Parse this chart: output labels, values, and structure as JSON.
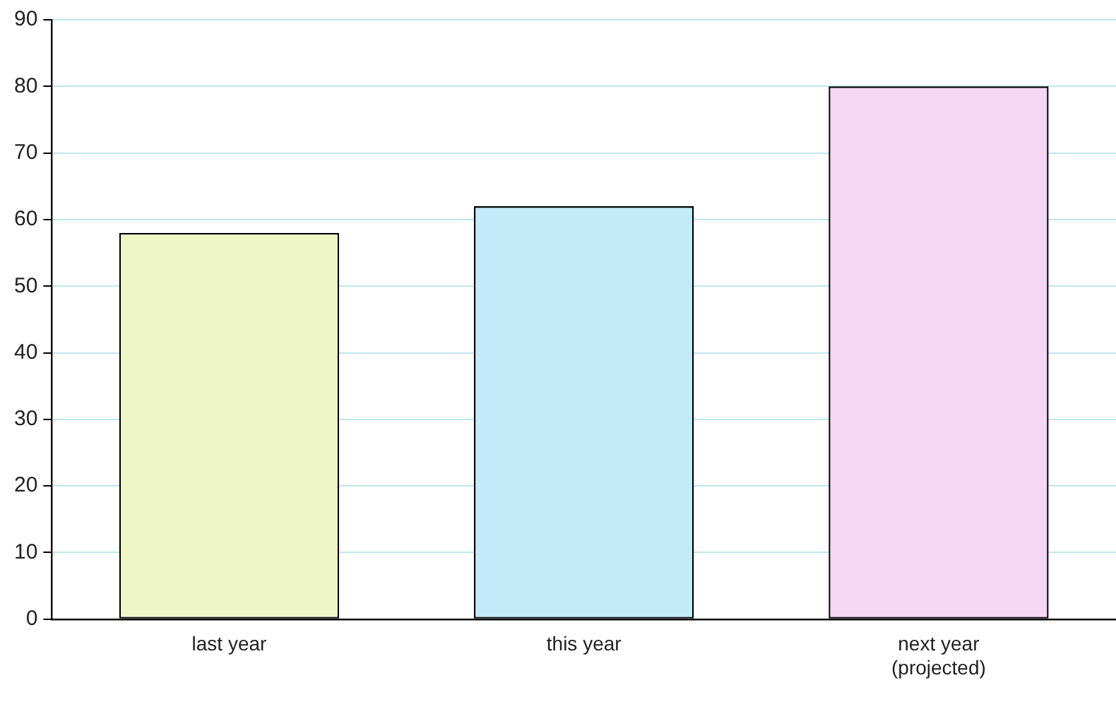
{
  "chart_data": {
    "type": "bar",
    "categories": [
      "last year",
      "this year",
      "next year\n(projected)"
    ],
    "values": [
      58,
      62,
      80
    ],
    "colors": [
      "#eef6c6",
      "#c2eaf8",
      "#f5d6f3"
    ],
    "ylim": [
      0,
      90
    ],
    "yticks": [
      0,
      10,
      20,
      30,
      40,
      50,
      60,
      70,
      80,
      90
    ],
    "grid": "y",
    "legend": false
  }
}
